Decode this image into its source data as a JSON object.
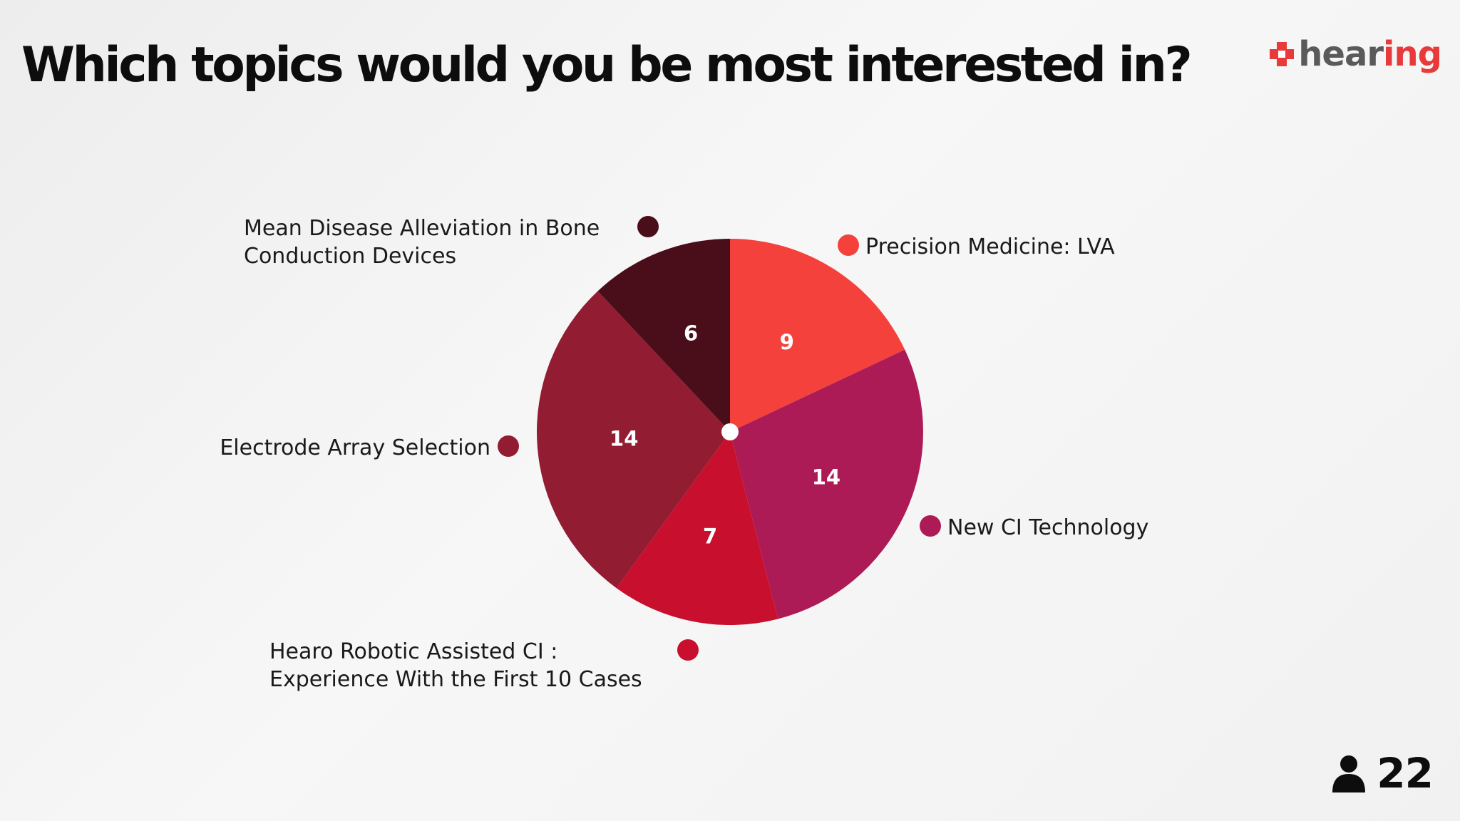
{
  "slide": {
    "title": "Which topics would you be most interested in?",
    "logo": {
      "text_a": "hear",
      "text_b": "ing",
      "icon": "plus-cross-icon"
    },
    "participants": {
      "icon": "person-icon",
      "count": "22"
    }
  },
  "chart_data": {
    "type": "pie",
    "title": "Which topics would you be most interested in?",
    "start_angle": "top",
    "direction": "clockwise",
    "legend_placement": "around",
    "series": [
      {
        "name": "Precision Medicine: LVA",
        "value": 9,
        "color": "#f4413b"
      },
      {
        "name": "New CI Technology",
        "value": 14,
        "color": "#ac1b55"
      },
      {
        "name": "Hearo Robotic Assisted CI : Experience With the First 10 Cases",
        "value": 7,
        "color": "#c8102e"
      },
      {
        "name": "Electrode Array Selection",
        "value": 14,
        "color": "#921c32"
      },
      {
        "name": "Mean Disease Alleviation in Bone Conduction Devices",
        "value": 6,
        "color": "#4a0d1a"
      }
    ],
    "legend_lines": [
      [
        "Precision Medicine: LVA"
      ],
      [
        "New CI Technology"
      ],
      [
        "Hearo Robotic Assisted CI :",
        "Experience With the First 10 Cases"
      ],
      [
        "Electrode Array Selection"
      ],
      [
        "Mean Disease Alleviation in Bone",
        "Conduction Devices"
      ]
    ]
  }
}
